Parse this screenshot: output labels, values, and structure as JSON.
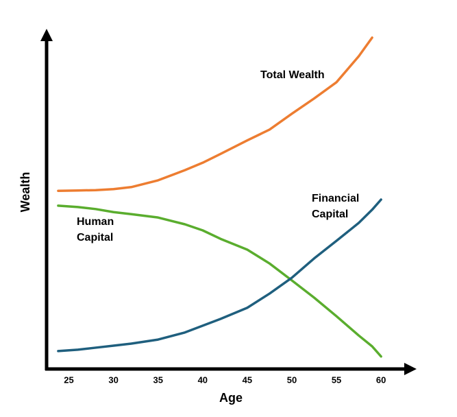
{
  "chart_data": {
    "type": "line",
    "x_label": "Age",
    "y_label": "Wealth",
    "x": [
      23.8,
      26,
      28,
      30,
      32,
      35,
      38,
      40,
      42,
      45,
      47.5,
      50,
      52.5,
      55,
      57.5,
      59,
      60
    ],
    "series": [
      {
        "name": "Total Wealth",
        "color": "#ed7d31",
        "values": [
          52.7,
          52.8,
          52.9,
          53.2,
          53.8,
          55.8,
          58.8,
          61,
          63.6,
          67.6,
          70.8,
          75.5,
          80,
          84.8,
          92.5,
          98,
          null
        ]
      },
      {
        "name": "Human Capital",
        "color": "#5aad2e",
        "values": [
          48.3,
          47.9,
          47.3,
          46.4,
          45.8,
          44.8,
          42.8,
          41,
          38.5,
          35.3,
          31.2,
          26.2,
          21.1,
          15.6,
          9.9,
          6.7,
          3.7
        ]
      },
      {
        "name": "Financial Capital",
        "color": "#1f5f7e",
        "values": [
          5.3,
          5.7,
          6.3,
          6.9,
          7.5,
          8.7,
          10.8,
          12.8,
          14.8,
          18.1,
          22.3,
          27,
          32.7,
          37.9,
          43.2,
          47.1,
          50.1
        ]
      }
    ],
    "xlim": [
      22.5,
      62.6
    ],
    "xticks": [
      25,
      30,
      35,
      40,
      45,
      50,
      55,
      60
    ],
    "ylim": [
      0,
      100
    ]
  }
}
